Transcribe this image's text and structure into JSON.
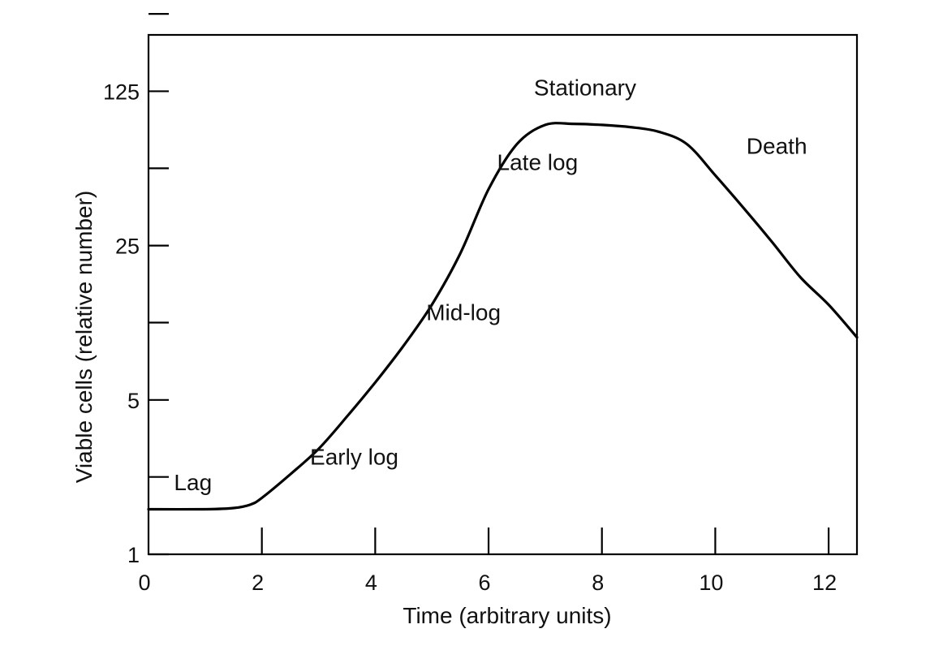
{
  "chart_data": {
    "type": "line",
    "xlabel": "Time (arbitrary units)",
    "ylabel": "Viable cells (relative number)",
    "xlim": [
      0,
      12.5
    ],
    "ylim": [
      1,
      225
    ],
    "y_scale": "log",
    "x_ticks": [
      0,
      2,
      4,
      6,
      8,
      10,
      12
    ],
    "y_tick_labels": [
      1,
      5,
      25,
      125
    ],
    "y_minor_ticks": [
      2.24,
      11.2,
      56,
      280
    ],
    "grid": false,
    "legend": "none",
    "line_color": "#000000",
    "series": [
      {
        "x": [
          0,
          1.0,
          1.5,
          1.8,
          2.0,
          2.5,
          3.0,
          3.5,
          4.0,
          4.5,
          5.0,
          5.5,
          6.0,
          6.5,
          7.0,
          7.5,
          8.0,
          8.5,
          9.0,
          9.5,
          10.0,
          10.5,
          11.0,
          11.5,
          12.0,
          12.5
        ],
        "y": [
          1.6,
          1.6,
          1.62,
          1.68,
          1.8,
          2.3,
          3.0,
          4.2,
          6.0,
          8.8,
          13.5,
          23,
          45,
          72,
          88,
          89,
          88,
          86,
          82,
          72,
          52,
          37,
          26,
          18,
          13.5,
          9.6
        ]
      }
    ],
    "annotations": [
      {
        "text": "Lag",
        "x": 0.45,
        "y": 1.95
      },
      {
        "text": "Early log",
        "x": 2.85,
        "y": 2.55
      },
      {
        "text": "Mid-log",
        "x": 4.9,
        "y": 11.5
      },
      {
        "text": "Late log",
        "x": 6.15,
        "y": 55
      },
      {
        "text": "Stationary",
        "x": 6.8,
        "y": 120
      },
      {
        "text": "Death",
        "x": 10.55,
        "y": 65
      }
    ]
  }
}
